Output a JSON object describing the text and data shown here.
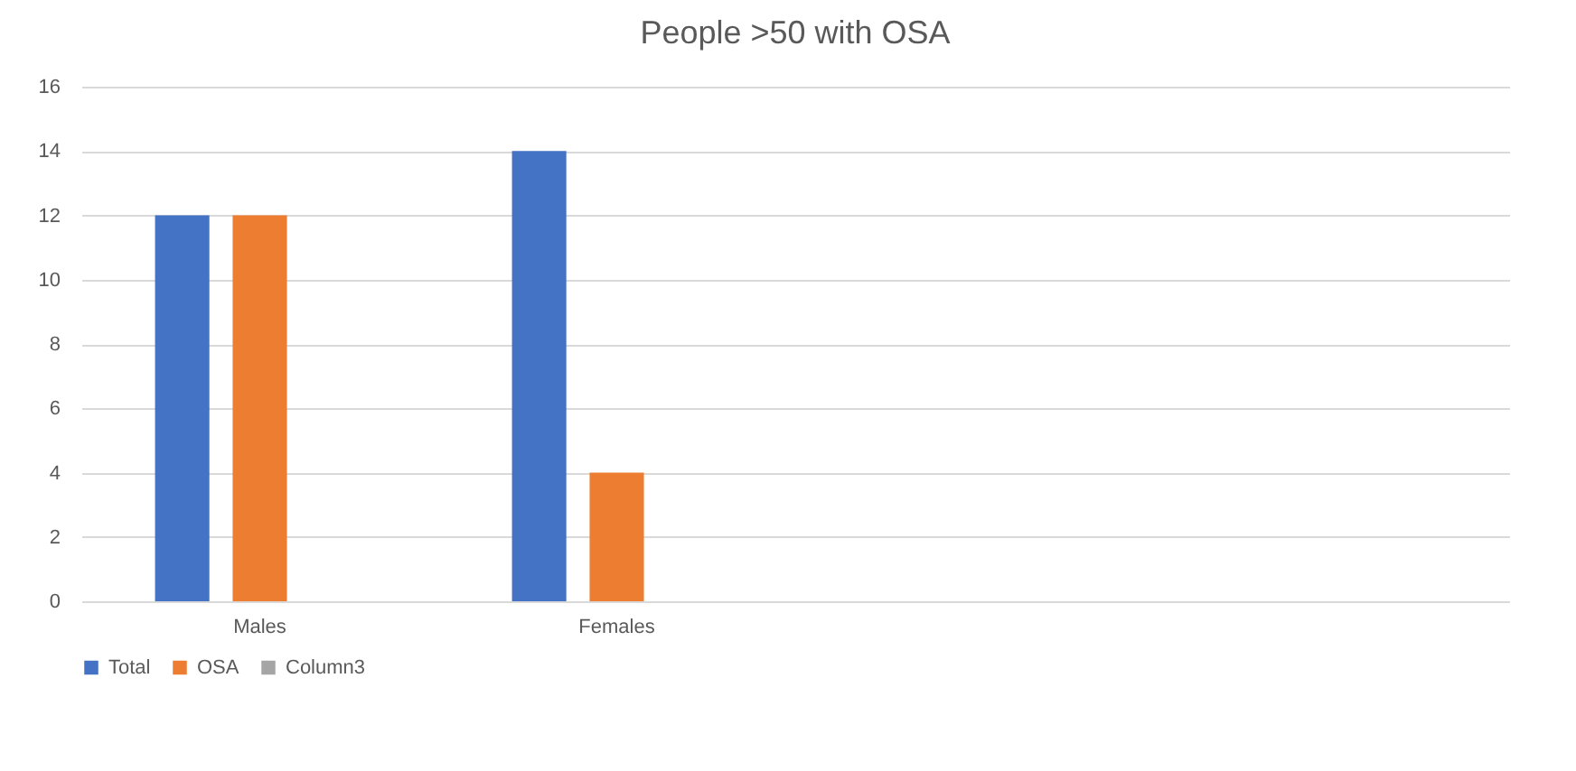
{
  "chart_data": {
    "type": "bar",
    "title": "People >50 with OSA",
    "categories": [
      "Males",
      "Females",
      null,
      null
    ],
    "series": [
      {
        "name": "Total",
        "color": "#4472c4",
        "values": [
          12,
          14,
          null,
          null
        ]
      },
      {
        "name": "OSA",
        "color": "#ed7d31",
        "values": [
          12,
          4,
          null,
          null
        ]
      },
      {
        "name": "Column3",
        "color": "#a5a5a5",
        "values": [
          null,
          null,
          null,
          null
        ]
      }
    ],
    "ylim": [
      0,
      16
    ],
    "yticks": [
      0,
      2,
      4,
      6,
      8,
      10,
      12,
      14,
      16
    ],
    "grid": "y",
    "legend": "bottom"
  }
}
